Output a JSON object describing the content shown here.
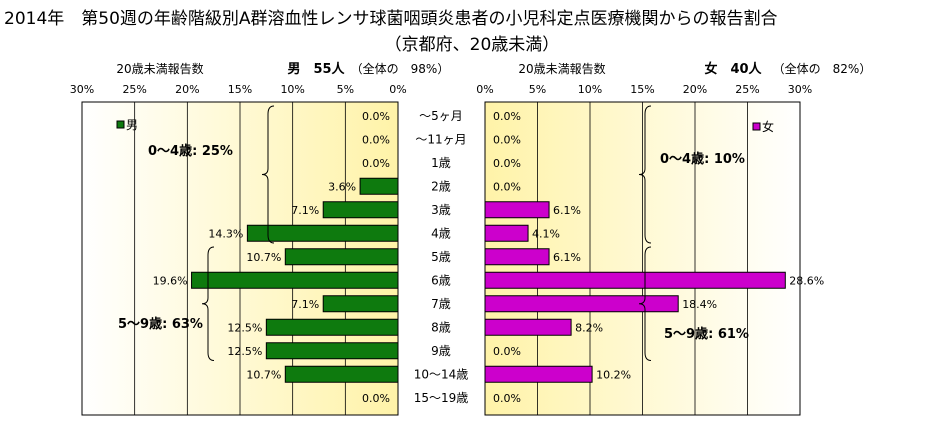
{
  "title_line1": "2014年　第50週の年齢階級別A群溶血性レンサ球菌咽頭炎患者の小児科定点医療機関からの報告割合",
  "title_line2": "（京都府、20歳未満）",
  "colors": {
    "male": "#0E7A0E",
    "female": "#CC00CC",
    "panel_light": "#FFFFFF",
    "panel_dark": "#FFF3A8"
  },
  "chart_data": {
    "type": "bar",
    "orientation": "horizontal",
    "categories": [
      "～5ヶ月",
      "～11ヶ月",
      "1歳",
      "2歳",
      "3歳",
      "4歳",
      "5歳",
      "6歳",
      "7歳",
      "8歳",
      "9歳",
      "10～14歳",
      "15～19歳"
    ],
    "xlim": [
      0,
      30
    ],
    "x_ticks": [
      "0%",
      "5%",
      "10%",
      "15%",
      "20%",
      "25%",
      "30%"
    ],
    "grid": true,
    "male": {
      "header_left": "20歳未満報告数",
      "header_main": "男　55人",
      "header_note": "（全体の　98%）",
      "legend": "男",
      "values": [
        0.0,
        0.0,
        0.0,
        3.6,
        7.1,
        14.3,
        10.7,
        19.6,
        7.1,
        12.5,
        12.5,
        10.7,
        0.0
      ],
      "labels": [
        "0.0%",
        "0.0%",
        "0.0%",
        "3.6%",
        "7.1%",
        "14.3%",
        "10.7%",
        "19.6%",
        "7.1%",
        "12.5%",
        "12.5%",
        "10.7%",
        "0.0%"
      ],
      "group_labels": [
        "0～4歳: 25%",
        "5～9歳: 63%"
      ]
    },
    "female": {
      "header_left": "20歳未満報告数",
      "header_main": "女　40人",
      "header_note": "（全体の　82%）",
      "legend": "女",
      "values": [
        0.0,
        0.0,
        0.0,
        0.0,
        6.1,
        4.1,
        6.1,
        28.6,
        18.4,
        8.2,
        0.0,
        10.2,
        0.0
      ],
      "labels": [
        "0.0%",
        "0.0%",
        "0.0%",
        "0.0%",
        "6.1%",
        "4.1%",
        "6.1%",
        "28.6%",
        "18.4%",
        "8.2%",
        "0.0%",
        "10.2%",
        "0.0%"
      ],
      "group_labels": [
        "0～4歳: 10%",
        "5～9歳: 61%"
      ]
    }
  }
}
